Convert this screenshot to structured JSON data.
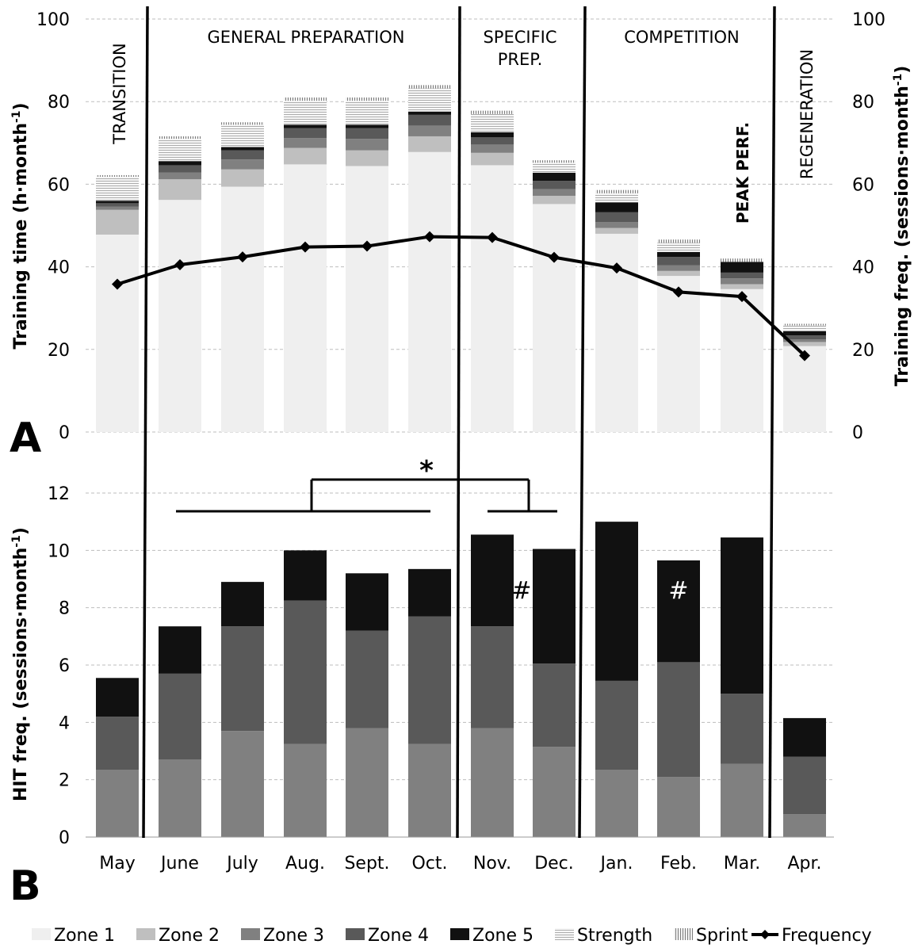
{
  "colors": {
    "zone1": "#efefef",
    "zone2": "#bfbfbf",
    "zone3": "#808080",
    "zone4": "#595959",
    "zone5": "#111111",
    "strength": "#f4f4f4",
    "sprint": "#e6e6e6",
    "frequency": "#000000",
    "grid": "#bdbdbd"
  },
  "panel_labels": {
    "a": "A",
    "b": "B"
  },
  "phases": {
    "transition": "TRANSITION",
    "general": "GENERAL PREPARATION",
    "specific_line1": "SPECIFIC",
    "specific_line2": "PREP.",
    "competition": "COMPETITION",
    "peak": "PEAK PERF.",
    "regeneration": "REGENERATION"
  },
  "annotations": {
    "star": "*",
    "hash": "#"
  },
  "legend": [
    {
      "key": "zone1",
      "label": "Zone 1",
      "swatch": "solid"
    },
    {
      "key": "zone2",
      "label": "Zone 2",
      "swatch": "solid"
    },
    {
      "key": "zone3",
      "label": "Zone 3",
      "swatch": "solid"
    },
    {
      "key": "zone4",
      "label": "Zone 4",
      "swatch": "solid"
    },
    {
      "key": "zone5",
      "label": "Zone 5",
      "swatch": "solid"
    },
    {
      "key": "strength",
      "label": "Strength",
      "swatch": "hlines"
    },
    {
      "key": "sprint",
      "label": "Sprint",
      "swatch": "vlines"
    },
    {
      "key": "frequency",
      "label": "Frequency",
      "swatch": "line"
    }
  ],
  "chart_data": [
    {
      "panel": "A",
      "type": "bar",
      "stacked": true,
      "categories": [
        "May",
        "June",
        "July",
        "Aug.",
        "Sept.",
        "Oct.",
        "Nov.",
        "Dec.",
        "Jan.",
        "Feb.",
        "Mar.",
        "Apr."
      ],
      "ylabel_left": {
        "main": "Training time (h·month",
        "sup": "-1",
        "tail": ")"
      },
      "ylabel_right": {
        "main": "Training freq. (sessions·month",
        "sup": "-1",
        "tail": ")"
      },
      "ylim": [
        0,
        100
      ],
      "yticks": [
        "0",
        "20",
        "40",
        "60",
        "80",
        "100"
      ],
      "grid": true,
      "legend_position": "bottom",
      "series": [
        {
          "name": "Zone 1",
          "key": "zone1",
          "values": [
            47.8,
            56.2,
            59.4,
            64.8,
            64.4,
            67.8,
            64.6,
            55.2,
            48.0,
            37.8,
            34.6,
            20.8
          ]
        },
        {
          "name": "Zone 2",
          "key": "zone2",
          "values": [
            6.0,
            5.0,
            4.2,
            4.0,
            3.8,
            3.8,
            3.0,
            2.0,
            1.4,
            1.2,
            1.2,
            1.0
          ]
        },
        {
          "name": "Zone 3",
          "key": "zone3",
          "values": [
            0.8,
            1.6,
            2.4,
            2.4,
            2.8,
            2.6,
            2.0,
            1.6,
            1.4,
            1.4,
            1.4,
            0.6
          ]
        },
        {
          "name": "Zone 4",
          "key": "zone4",
          "values": [
            0.8,
            1.8,
            2.2,
            2.4,
            2.6,
            2.6,
            1.8,
            2.0,
            2.4,
            2.0,
            1.4,
            1.0
          ]
        },
        {
          "name": "Zone 5",
          "key": "zone5",
          "values": [
            0.6,
            1.0,
            0.8,
            0.8,
            0.8,
            0.8,
            1.2,
            2.0,
            2.4,
            1.2,
            2.6,
            1.0
          ]
        },
        {
          "name": "Strength",
          "key": "strength",
          "values": [
            5.8,
            5.4,
            5.4,
            5.8,
            5.8,
            5.6,
            4.4,
            2.4,
            2.2,
            2.2,
            0.0,
            1.4
          ]
        },
        {
          "name": "Sprint",
          "key": "sprint",
          "values": [
            0.4,
            0.6,
            0.6,
            0.8,
            0.8,
            0.8,
            0.8,
            0.6,
            0.8,
            0.8,
            0.8,
            0.4
          ]
        }
      ],
      "line": {
        "name": "Frequency",
        "axis": "right",
        "values": [
          35.8,
          40.5,
          42.4,
          44.8,
          45.0,
          47.3,
          47.1,
          42.3,
          39.7,
          33.9,
          32.8,
          18.5
        ]
      }
    },
    {
      "panel": "B",
      "type": "bar",
      "stacked": true,
      "categories": [
        "May",
        "June",
        "July",
        "Aug.",
        "Sept.",
        "Oct.",
        "Nov.",
        "Dec.",
        "Jan.",
        "Feb.",
        "Mar.",
        "Apr."
      ],
      "ylabel": {
        "main": "HIT freq. (sessions·month",
        "sup": "-1",
        "tail": ")"
      },
      "ylim": [
        0,
        12
      ],
      "yticks": [
        "0",
        "2",
        "4",
        "6",
        "8",
        "10",
        "12"
      ],
      "grid": true,
      "series": [
        {
          "name": "Zone 3",
          "key": "zone3",
          "values": [
            2.35,
            2.7,
            3.7,
            3.25,
            3.8,
            3.25,
            3.8,
            3.15,
            2.35,
            2.1,
            2.55,
            0.8
          ]
        },
        {
          "name": "Zone 4",
          "key": "zone4",
          "values": [
            1.85,
            3.0,
            3.65,
            5.0,
            3.4,
            4.45,
            3.55,
            2.9,
            3.1,
            4.0,
            2.45,
            2.0
          ]
        },
        {
          "name": "Zone 5",
          "key": "zone5",
          "values": [
            1.35,
            1.65,
            1.55,
            1.75,
            2.0,
            1.65,
            3.2,
            4.0,
            5.55,
            3.55,
            5.45,
            1.35
          ]
        }
      ]
    }
  ]
}
